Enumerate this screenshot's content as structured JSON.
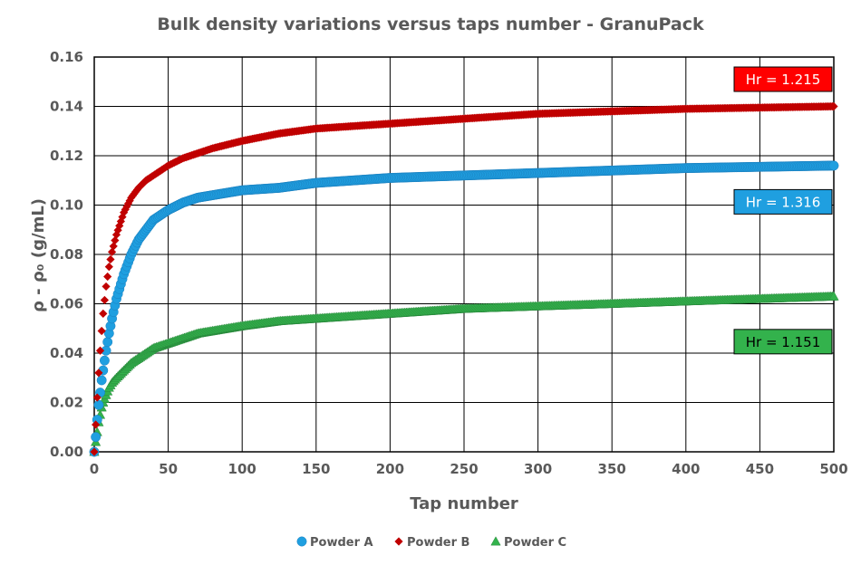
{
  "chart_data": {
    "type": "scatter",
    "title": "Bulk density variations versus taps number - GranuPack",
    "xlabel": "Tap number",
    "ylabel": "ρ - ρ₀ (g/mL)",
    "xlim": [
      0,
      500
    ],
    "ylim": [
      0,
      0.16
    ],
    "x_ticks": [
      "0",
      "50",
      "100",
      "150",
      "200",
      "250",
      "300",
      "350",
      "400",
      "450",
      "500"
    ],
    "y_ticks": [
      "0.00",
      "0.02",
      "0.04",
      "0.06",
      "0.08",
      "0.10",
      "0.12",
      "0.14",
      "0.16"
    ],
    "grid": true,
    "legend_position": "bottom",
    "series": [
      {
        "name": "Powder A",
        "marker": "circle",
        "color": "#1f9fe0",
        "annotation": "Hr = 1.316",
        "annotation_color": "#1f9fe0",
        "points": [
          [
            0,
            0
          ],
          [
            1,
            0.006
          ],
          [
            2,
            0.013
          ],
          [
            3,
            0.019
          ],
          [
            4,
            0.024
          ],
          [
            5,
            0.029
          ],
          [
            6,
            0.033
          ],
          [
            8,
            0.041
          ],
          [
            10,
            0.048
          ],
          [
            12,
            0.054
          ],
          [
            15,
            0.062
          ],
          [
            20,
            0.072
          ],
          [
            25,
            0.08
          ],
          [
            30,
            0.086
          ],
          [
            35,
            0.09
          ],
          [
            40,
            0.094
          ],
          [
            50,
            0.098
          ],
          [
            60,
            0.101
          ],
          [
            70,
            0.103
          ],
          [
            80,
            0.104
          ],
          [
            100,
            0.106
          ],
          [
            125,
            0.107
          ],
          [
            150,
            0.109
          ],
          [
            175,
            0.11
          ],
          [
            200,
            0.111
          ],
          [
            250,
            0.112
          ],
          [
            300,
            0.113
          ],
          [
            350,
            0.114
          ],
          [
            400,
            0.115
          ],
          [
            450,
            0.1155
          ],
          [
            500,
            0.116
          ]
        ]
      },
      {
        "name": "Powder B",
        "marker": "diamond",
        "color": "#c00000",
        "annotation": "Hr = 1.215",
        "annotation_color": "#ff0000",
        "points": [
          [
            0,
            0
          ],
          [
            1,
            0.011
          ],
          [
            2,
            0.022
          ],
          [
            3,
            0.032
          ],
          [
            4,
            0.041
          ],
          [
            5,
            0.049
          ],
          [
            6,
            0.056
          ],
          [
            8,
            0.067
          ],
          [
            10,
            0.075
          ],
          [
            12,
            0.081
          ],
          [
            15,
            0.088
          ],
          [
            20,
            0.097
          ],
          [
            25,
            0.103
          ],
          [
            30,
            0.107
          ],
          [
            35,
            0.11
          ],
          [
            40,
            0.112
          ],
          [
            50,
            0.116
          ],
          [
            60,
            0.119
          ],
          [
            70,
            0.121
          ],
          [
            80,
            0.123
          ],
          [
            100,
            0.126
          ],
          [
            125,
            0.129
          ],
          [
            150,
            0.131
          ],
          [
            175,
            0.132
          ],
          [
            200,
            0.133
          ],
          [
            250,
            0.135
          ],
          [
            300,
            0.137
          ],
          [
            350,
            0.138
          ],
          [
            400,
            0.139
          ],
          [
            450,
            0.1395
          ],
          [
            500,
            0.14
          ]
        ]
      },
      {
        "name": "Powder C",
        "marker": "triangle",
        "color": "#33b24c",
        "annotation": "Hr = 1.151",
        "annotation_color": "#33b24c",
        "points": [
          [
            0,
            0
          ],
          [
            1,
            0.004
          ],
          [
            2,
            0.008
          ],
          [
            3,
            0.012
          ],
          [
            4,
            0.015
          ],
          [
            5,
            0.018
          ],
          [
            6,
            0.02
          ],
          [
            8,
            0.023
          ],
          [
            10,
            0.026
          ],
          [
            12,
            0.028
          ],
          [
            15,
            0.03
          ],
          [
            20,
            0.033
          ],
          [
            25,
            0.036
          ],
          [
            30,
            0.038
          ],
          [
            35,
            0.04
          ],
          [
            40,
            0.042
          ],
          [
            50,
            0.044
          ],
          [
            60,
            0.046
          ],
          [
            70,
            0.048
          ],
          [
            80,
            0.049
          ],
          [
            100,
            0.051
          ],
          [
            125,
            0.053
          ],
          [
            150,
            0.054
          ],
          [
            175,
            0.055
          ],
          [
            200,
            0.056
          ],
          [
            250,
            0.058
          ],
          [
            300,
            0.059
          ],
          [
            350,
            0.06
          ],
          [
            400,
            0.061
          ],
          [
            450,
            0.062
          ],
          [
            500,
            0.063
          ]
        ]
      }
    ]
  }
}
